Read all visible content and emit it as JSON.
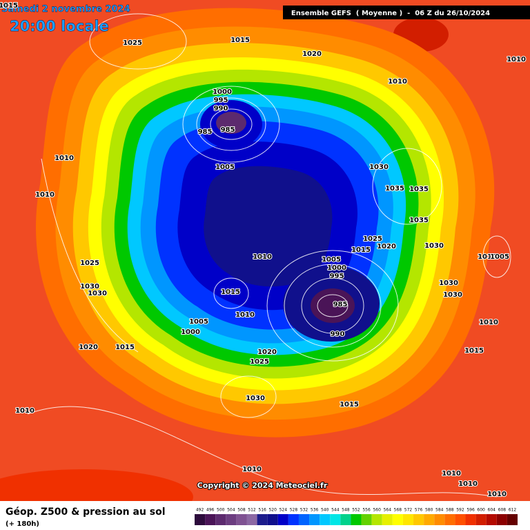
{
  "header": {
    "date": "Samedi 2 novembre 2024",
    "time": "20:00 locale",
    "model": "Ensemble GEFS  ( Moyenne )  -  06 Z du 26/10/2024"
  },
  "footer": {
    "title": "Géop. Z500 & pression au sol",
    "range": "(+ 180h)",
    "copyright": "Copyright © 2024 Meteociel.fr"
  },
  "colorbar": {
    "ticks": [
      492,
      496,
      500,
      504,
      508,
      512,
      516,
      520,
      524,
      528,
      532,
      536,
      540,
      544,
      548,
      552,
      556,
      560,
      564,
      568,
      572,
      576,
      580,
      584,
      588,
      592,
      596,
      600,
      604,
      608,
      612
    ],
    "colors": [
      "#2d0b3c",
      "#4a1457",
      "#5c2a6e",
      "#6c3d80",
      "#7f5292",
      "#8c68a3",
      "#1c1c8c",
      "#10108c",
      "#0000c8",
      "#0032ff",
      "#0064ff",
      "#0096ff",
      "#00c8ff",
      "#00e6e6",
      "#00d28c",
      "#00c800",
      "#64d200",
      "#b4e600",
      "#e6f000",
      "#ffff00",
      "#ffe600",
      "#ffc800",
      "#ffaa00",
      "#ff8c00",
      "#ff6e00",
      "#ff5000",
      "#f03000",
      "#d21e00",
      "#b40a00",
      "#8c0000",
      "#640000"
    ]
  },
  "isobar_labels": [
    1015,
    1025,
    1015,
    1020,
    1010,
    1010,
    1000,
    995,
    990,
    985,
    985,
    1005,
    1010,
    1010,
    1030,
    1035,
    1035,
    1035,
    1025,
    1020,
    1015,
    1030,
    1010,
    1005,
    1000,
    995,
    1025,
    1030,
    1030,
    1015,
    1010,
    985,
    990,
    1010,
    1005,
    1030,
    1030,
    1010,
    1005,
    1000,
    1020,
    1015,
    1020,
    1025,
    1015,
    1030,
    1015,
    1010,
    1010,
    1010,
    1010,
    1010
  ]
}
